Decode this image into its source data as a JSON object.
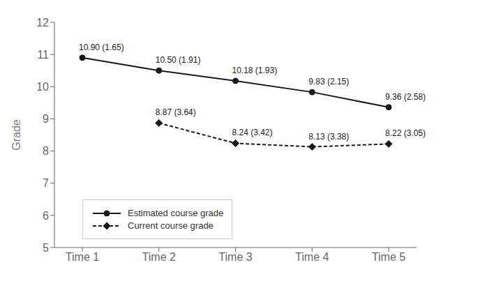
{
  "chart_data": {
    "type": "line",
    "categories": [
      "Time 1",
      "Time 2",
      "Time 3",
      "Time 4",
      "Time 5"
    ],
    "ylabel": "Grade",
    "ylim": [
      5,
      12
    ],
    "yticks": [
      5,
      6,
      7,
      8,
      9,
      10,
      11,
      12
    ],
    "grid": false,
    "legend": "lower left",
    "data_labels": true,
    "series": [
      {
        "name": "Estimated course grade",
        "color": "#1a1a1a",
        "marker": "circle",
        "line_style": "solid",
        "values": [
          10.9,
          10.5,
          10.18,
          9.83,
          9.36
        ],
        "value_labels": [
          "10.90 (1.65)",
          "10.50 (1.91)",
          "10.18 (1.93)",
          "9.83 (2.15)",
          "9.36 (2.58)"
        ]
      },
      {
        "name": "Current course grade",
        "color": "#1a1a1a",
        "marker": "diamond",
        "line_style": "dashed",
        "values": [
          null,
          8.87,
          8.24,
          8.13,
          8.22
        ],
        "value_labels": [
          null,
          "8.87 (3.64)",
          "8.24 (3.42)",
          "8.13 (3.38)",
          "8.22 (3.05)"
        ]
      }
    ]
  }
}
